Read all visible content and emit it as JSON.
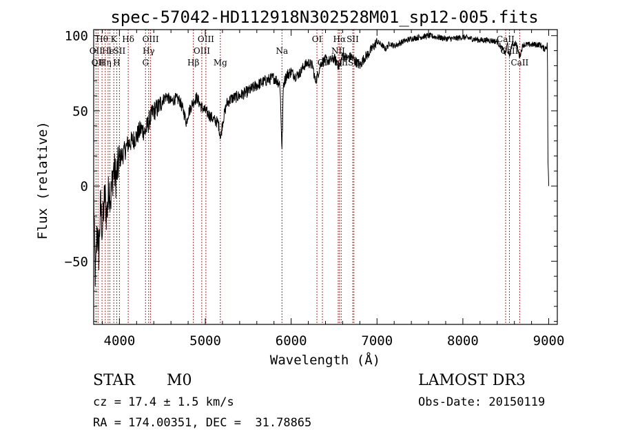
{
  "chart_data": {
    "type": "line",
    "title": "spec-57042-HD112918N302528M01_sp12-005.fits",
    "xlabel": "Wavelength (Å)",
    "ylabel": "Flux (relative)",
    "xlim": [
      3700,
      9100
    ],
    "ylim": [
      -92,
      104
    ],
    "xticks": [
      4000,
      5000,
      6000,
      7000,
      8000,
      9000
    ],
    "yticks": [
      -50,
      0,
      50,
      100
    ],
    "ytick_labels": [
      "−50",
      "0",
      "50",
      "100"
    ],
    "grid": false,
    "line_color": "#000000",
    "marker_color": "#b22222",
    "spectrum_anchors": [
      [
        3700,
        0
      ],
      [
        3710,
        -40
      ],
      [
        3720,
        -62
      ],
      [
        3740,
        -28
      ],
      [
        3760,
        -45
      ],
      [
        3780,
        -12
      ],
      [
        3800,
        -30
      ],
      [
        3830,
        -5
      ],
      [
        3850,
        -20
      ],
      [
        3880,
        0
      ],
      [
        3900,
        -8
      ],
      [
        3930,
        12
      ],
      [
        3960,
        5
      ],
      [
        4000,
        18
      ],
      [
        4050,
        22
      ],
      [
        4100,
        28
      ],
      [
        4150,
        30
      ],
      [
        4200,
        33
      ],
      [
        4250,
        38
      ],
      [
        4300,
        36
      ],
      [
        4350,
        44
      ],
      [
        4400,
        50
      ],
      [
        4450,
        52
      ],
      [
        4500,
        57
      ],
      [
        4550,
        60
      ],
      [
        4600,
        56
      ],
      [
        4650,
        58
      ],
      [
        4700,
        57
      ],
      [
        4750,
        49
      ],
      [
        4780,
        42
      ],
      [
        4800,
        48
      ],
      [
        4850,
        55
      ],
      [
        4900,
        59
      ],
      [
        4950,
        53
      ],
      [
        5000,
        50
      ],
      [
        5050,
        47
      ],
      [
        5100,
        44
      ],
      [
        5150,
        42
      ],
      [
        5180,
        32
      ],
      [
        5200,
        42
      ],
      [
        5250,
        55
      ],
      [
        5300,
        58
      ],
      [
        5400,
        60
      ],
      [
        5500,
        63
      ],
      [
        5600,
        67
      ],
      [
        5700,
        70
      ],
      [
        5800,
        72
      ],
      [
        5870,
        68
      ],
      [
        5893,
        24
      ],
      [
        5910,
        68
      ],
      [
        5950,
        74
      ],
      [
        6000,
        76
      ],
      [
        6050,
        73
      ],
      [
        6100,
        75
      ],
      [
        6150,
        80
      ],
      [
        6200,
        82
      ],
      [
        6250,
        80
      ],
      [
        6280,
        70
      ],
      [
        6300,
        72
      ],
      [
        6350,
        82
      ],
      [
        6400,
        84
      ],
      [
        6450,
        83
      ],
      [
        6500,
        85
      ],
      [
        6563,
        79
      ],
      [
        6600,
        87
      ],
      [
        6650,
        85
      ],
      [
        6700,
        86
      ],
      [
        6750,
        83
      ],
      [
        6800,
        80
      ],
      [
        6850,
        85
      ],
      [
        6900,
        88
      ],
      [
        6950,
        92
      ],
      [
        7000,
        96
      ],
      [
        7050,
        94
      ],
      [
        7100,
        91
      ],
      [
        7150,
        95
      ],
      [
        7200,
        93
      ],
      [
        7300,
        96
      ],
      [
        7400,
        98
      ],
      [
        7500,
        99
      ],
      [
        7600,
        100
      ],
      [
        7700,
        99
      ],
      [
        7800,
        98
      ],
      [
        7900,
        98
      ],
      [
        8000,
        99
      ],
      [
        8100,
        98
      ],
      [
        8200,
        97
      ],
      [
        8300,
        97
      ],
      [
        8400,
        96
      ],
      [
        8498,
        88
      ],
      [
        8520,
        95
      ],
      [
        8542,
        85
      ],
      [
        8570,
        94
      ],
      [
        8620,
        95
      ],
      [
        8662,
        86
      ],
      [
        8700,
        94
      ],
      [
        8800,
        94
      ],
      [
        8900,
        94
      ],
      [
        8950,
        91
      ],
      [
        8985,
        94
      ],
      [
        8990,
        20
      ],
      [
        9000,
        0
      ]
    ],
    "line_markers": [
      {
        "wavelength": 3727,
        "row": 1,
        "label": "OII"
      },
      {
        "wavelength": 3750,
        "row": 2,
        "label": "OII"
      },
      {
        "wavelength": 3797,
        "row": 0,
        "label": "Hθ"
      },
      {
        "wavelength": 3835,
        "row": 2,
        "label": "Hη"
      },
      {
        "wavelength": 3868,
        "row": 1,
        "label": "He"
      },
      {
        "wavelength": 3889,
        "row": 1,
        "label": "I"
      },
      {
        "wavelength": 3934,
        "row": 0,
        "label": "K"
      },
      {
        "wavelength": 3969,
        "row": 2,
        "label": "H"
      },
      {
        "wavelength": 4000,
        "row": 1,
        "label": "SII"
      },
      {
        "wavelength": 4102,
        "row": 0,
        "label": "Hδ"
      },
      {
        "wavelength": 4304,
        "row": 2,
        "label": "G"
      },
      {
        "wavelength": 4340,
        "row": 1,
        "label": "Hγ"
      },
      {
        "wavelength": 4363,
        "row": 0,
        "label": "OIII"
      },
      {
        "wavelength": 4861,
        "row": 2,
        "label": "Hβ"
      },
      {
        "wavelength": 4959,
        "row": 1,
        "label": "OIII"
      },
      {
        "wavelength": 5007,
        "row": 0,
        "label": "OIII"
      },
      {
        "wavelength": 5175,
        "row": 2,
        "label": "Mg"
      },
      {
        "wavelength": 5893,
        "row": 1,
        "label": "Na"
      },
      {
        "wavelength": 6300,
        "row": 0,
        "label": "OI"
      },
      {
        "wavelength": 6364,
        "row": 2,
        "label": "OI"
      },
      {
        "wavelength": 6548,
        "row": 1,
        "label": "NII"
      },
      {
        "wavelength": 6563,
        "row": 0,
        "label": "Hα"
      },
      {
        "wavelength": 6583,
        "row": 2,
        "label": "NII"
      },
      {
        "wavelength": 6717,
        "row": 0,
        "label": "SII"
      },
      {
        "wavelength": 6731,
        "row": 2,
        "label": "SII"
      },
      {
        "wavelength": 8498,
        "row": 0,
        "label": "CaII"
      },
      {
        "wavelength": 8542,
        "row": 1,
        "label": "CaII"
      },
      {
        "wavelength": 8662,
        "row": 2,
        "label": "CaII"
      }
    ]
  },
  "info": {
    "object_class": "STAR",
    "subclass": "M0",
    "survey": "LAMOST DR3",
    "redshift_line": "cz = 17.4 ± 1.5 km/s",
    "obs_date_line": "Obs-Date: 20150119",
    "coords_line": "RA = 174.00351, DEC =  31.78865"
  }
}
